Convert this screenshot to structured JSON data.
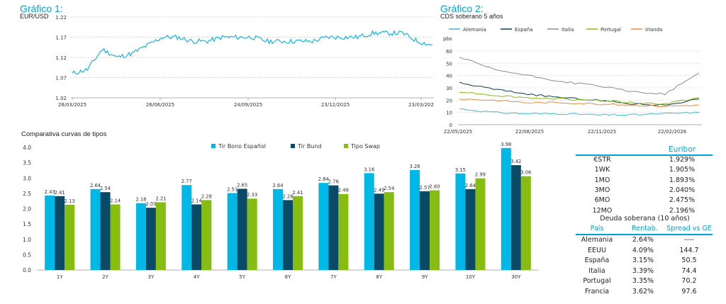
{
  "colors": {
    "accent": "#00a3d9",
    "eurusd_line": "#00b2e3",
    "bono": "#00b8e6",
    "bund": "#0b4a66",
    "swap": "#86bd10",
    "alemania": "#3cbbd8",
    "espana": "#0b3a58",
    "italia": "#8c8c8c",
    "portugal": "#86bd10",
    "irlanda": "#f28a3c"
  },
  "chart1": {
    "title": "Gráfico 1:",
    "subtitle": "EUR/USD",
    "y_ticks": [
      "1.22",
      "1.17",
      "1.12",
      "1.07",
      "1.02"
    ],
    "x_ticks": [
      "28/03/2025",
      "26/06/2025",
      "24/09/2025",
      "23/12/2025",
      "23/03/202"
    ]
  },
  "chart2": {
    "title": "Gráfico 2:",
    "subtitle": "CDS soberano 5 años",
    "unit": "pbs",
    "y_ticks": [
      "60",
      "50",
      "40",
      "30",
      "20",
      "10",
      "0"
    ],
    "x_ticks": [
      "22/05/2025",
      "22/08/2025",
      "22/11/2025",
      "22/02/2026"
    ],
    "legend": [
      "Alemania",
      "España",
      "Italia",
      "Portugal",
      "Irlanda"
    ]
  },
  "chart3": {
    "title": "Comparativa curvas de tipos",
    "y_ticks": [
      "4.0",
      "3.5",
      "3.0",
      "2.5",
      "2.0",
      "1.5",
      "1.0",
      "0.5",
      "0.0"
    ],
    "legend": [
      "Tir Bono Español",
      "Tir Bund",
      "Tipo Swap"
    ]
  },
  "chart_data": [
    {
      "type": "line",
      "title": "Gráfico 1:",
      "subtitle": "EUR/USD",
      "ylim": [
        1.02,
        1.22
      ],
      "grid": true,
      "series": [
        {
          "x": [
            "28/03/2025",
            "10/04/2025",
            "25/04/2025",
            "10/05/2025",
            "25/05/2025",
            "10/06/2025",
            "26/06/2025",
            "10/07/2025",
            "25/07/2025",
            "10/08/2025",
            "25/08/2025",
            "10/09/2025",
            "24/09/2025",
            "10/10/2025",
            "25/10/2025",
            "10/11/2025",
            "25/11/2025",
            "10/12/2025",
            "23/12/2025",
            "10/01/2026",
            "25/01/2026",
            "10/02/2026",
            "25/02/2026",
            "10/03/2026",
            "23/03/2026"
          ],
          "values": [
            1.08,
            1.09,
            1.14,
            1.12,
            1.13,
            1.15,
            1.17,
            1.17,
            1.16,
            1.16,
            1.17,
            1.17,
            1.17,
            1.16,
            1.16,
            1.16,
            1.16,
            1.17,
            1.17,
            1.17,
            1.18,
            1.18,
            1.18,
            1.16,
            1.15
          ]
        }
      ]
    },
    {
      "type": "line",
      "title": "Gráfico 2:",
      "subtitle": "CDS soberano 5 años",
      "ylabel": "pbs",
      "ylim": [
        0,
        60
      ],
      "grid": true,
      "legend": "top",
      "x": [
        "22/05/2025",
        "22/07/2025",
        "22/08/2025",
        "22/10/2025",
        "22/11/2025",
        "22/01/2026",
        "22/02/2026",
        "15/03/2026"
      ],
      "series": [
        {
          "name": "Alemania",
          "values": [
            13,
            10,
            9,
            9,
            8,
            8,
            9,
            10
          ]
        },
        {
          "name": "España",
          "values": [
            34,
            29,
            25,
            22,
            20,
            17,
            16,
            21
          ]
        },
        {
          "name": "Italia",
          "values": [
            55,
            45,
            40,
            35,
            32,
            27,
            25,
            42
          ]
        },
        {
          "name": "Portugal",
          "values": [
            27,
            24,
            22,
            21,
            20,
            18,
            17,
            22
          ]
        },
        {
          "name": "Irlanda",
          "values": [
            21,
            20,
            18,
            18,
            17,
            16,
            15,
            16
          ]
        }
      ]
    },
    {
      "type": "bar",
      "title": "Comparativa curvas de tipos",
      "ylim": [
        0,
        4.0
      ],
      "legend": "top",
      "categories": [
        "1Y",
        "2Y",
        "3Y",
        "4Y",
        "5Y",
        "6Y",
        "7Y",
        "8Y",
        "9Y",
        "10Y",
        "30Y"
      ],
      "series": [
        {
          "name": "Tir Bono Español",
          "values": [
            2.43,
            2.64,
            2.18,
            2.77,
            2.51,
            2.64,
            2.84,
            3.16,
            3.26,
            3.15,
            3.98
          ]
        },
        {
          "name": "Tir Bund",
          "values": [
            2.41,
            2.54,
            2.03,
            2.14,
            2.65,
            2.28,
            2.76,
            2.49,
            2.57,
            2.64,
            3.42
          ]
        },
        {
          "name": "Tipo Swap",
          "values": [
            2.13,
            2.14,
            2.21,
            2.28,
            2.33,
            2.41,
            2.48,
            2.54,
            2.6,
            2.99,
            3.06
          ]
        }
      ],
      "labels": [
        [
          "2.43",
          "2.64",
          "2.18",
          "2.77",
          "2.51",
          "2.64",
          "2.84",
          "3.16",
          "3.26",
          "3.15",
          "3.98"
        ],
        [
          "2.41",
          "2.54",
          "2.03",
          "2.14",
          "2.65",
          "2.28",
          "2.76",
          "2.49",
          "2.57",
          "2.64",
          "3.42"
        ],
        [
          "2.13",
          "2.14",
          "2.21",
          "2.28",
          "2.33",
          "2.41",
          "2.48",
          "2.54",
          "2.60",
          "2.99",
          "3.06"
        ]
      ]
    }
  ],
  "euribor": {
    "title": "Euribor",
    "rows": [
      {
        "label": "€STR",
        "value": "1.929%"
      },
      {
        "label": "1WK",
        "value": "1.905%"
      },
      {
        "label": "1MO",
        "value": "1.893%"
      },
      {
        "label": "3MO",
        "value": "2.040%"
      },
      {
        "label": "6MO",
        "value": "2.475%"
      },
      {
        "label": "12MO",
        "value": "2.196%"
      }
    ]
  },
  "deuda": {
    "title": "Deuda soberana (10 años)",
    "headers": [
      "País",
      "Rentab.",
      "Spread vs GE"
    ],
    "rows": [
      {
        "pais": "Alemania",
        "rentab": "2.64%",
        "spread": "----"
      },
      {
        "pais": "EEUU",
        "rentab": "4.09%",
        "spread": "144.7"
      },
      {
        "pais": "España",
        "rentab": "3.15%",
        "spread": "50.5"
      },
      {
        "pais": "Italia",
        "rentab": "3.39%",
        "spread": "74.4"
      },
      {
        "pais": "Portugal",
        "rentab": "3.35%",
        "spread": "70.2"
      },
      {
        "pais": "Francia",
        "rentab": "3.62%",
        "spread": "97.6"
      }
    ]
  }
}
